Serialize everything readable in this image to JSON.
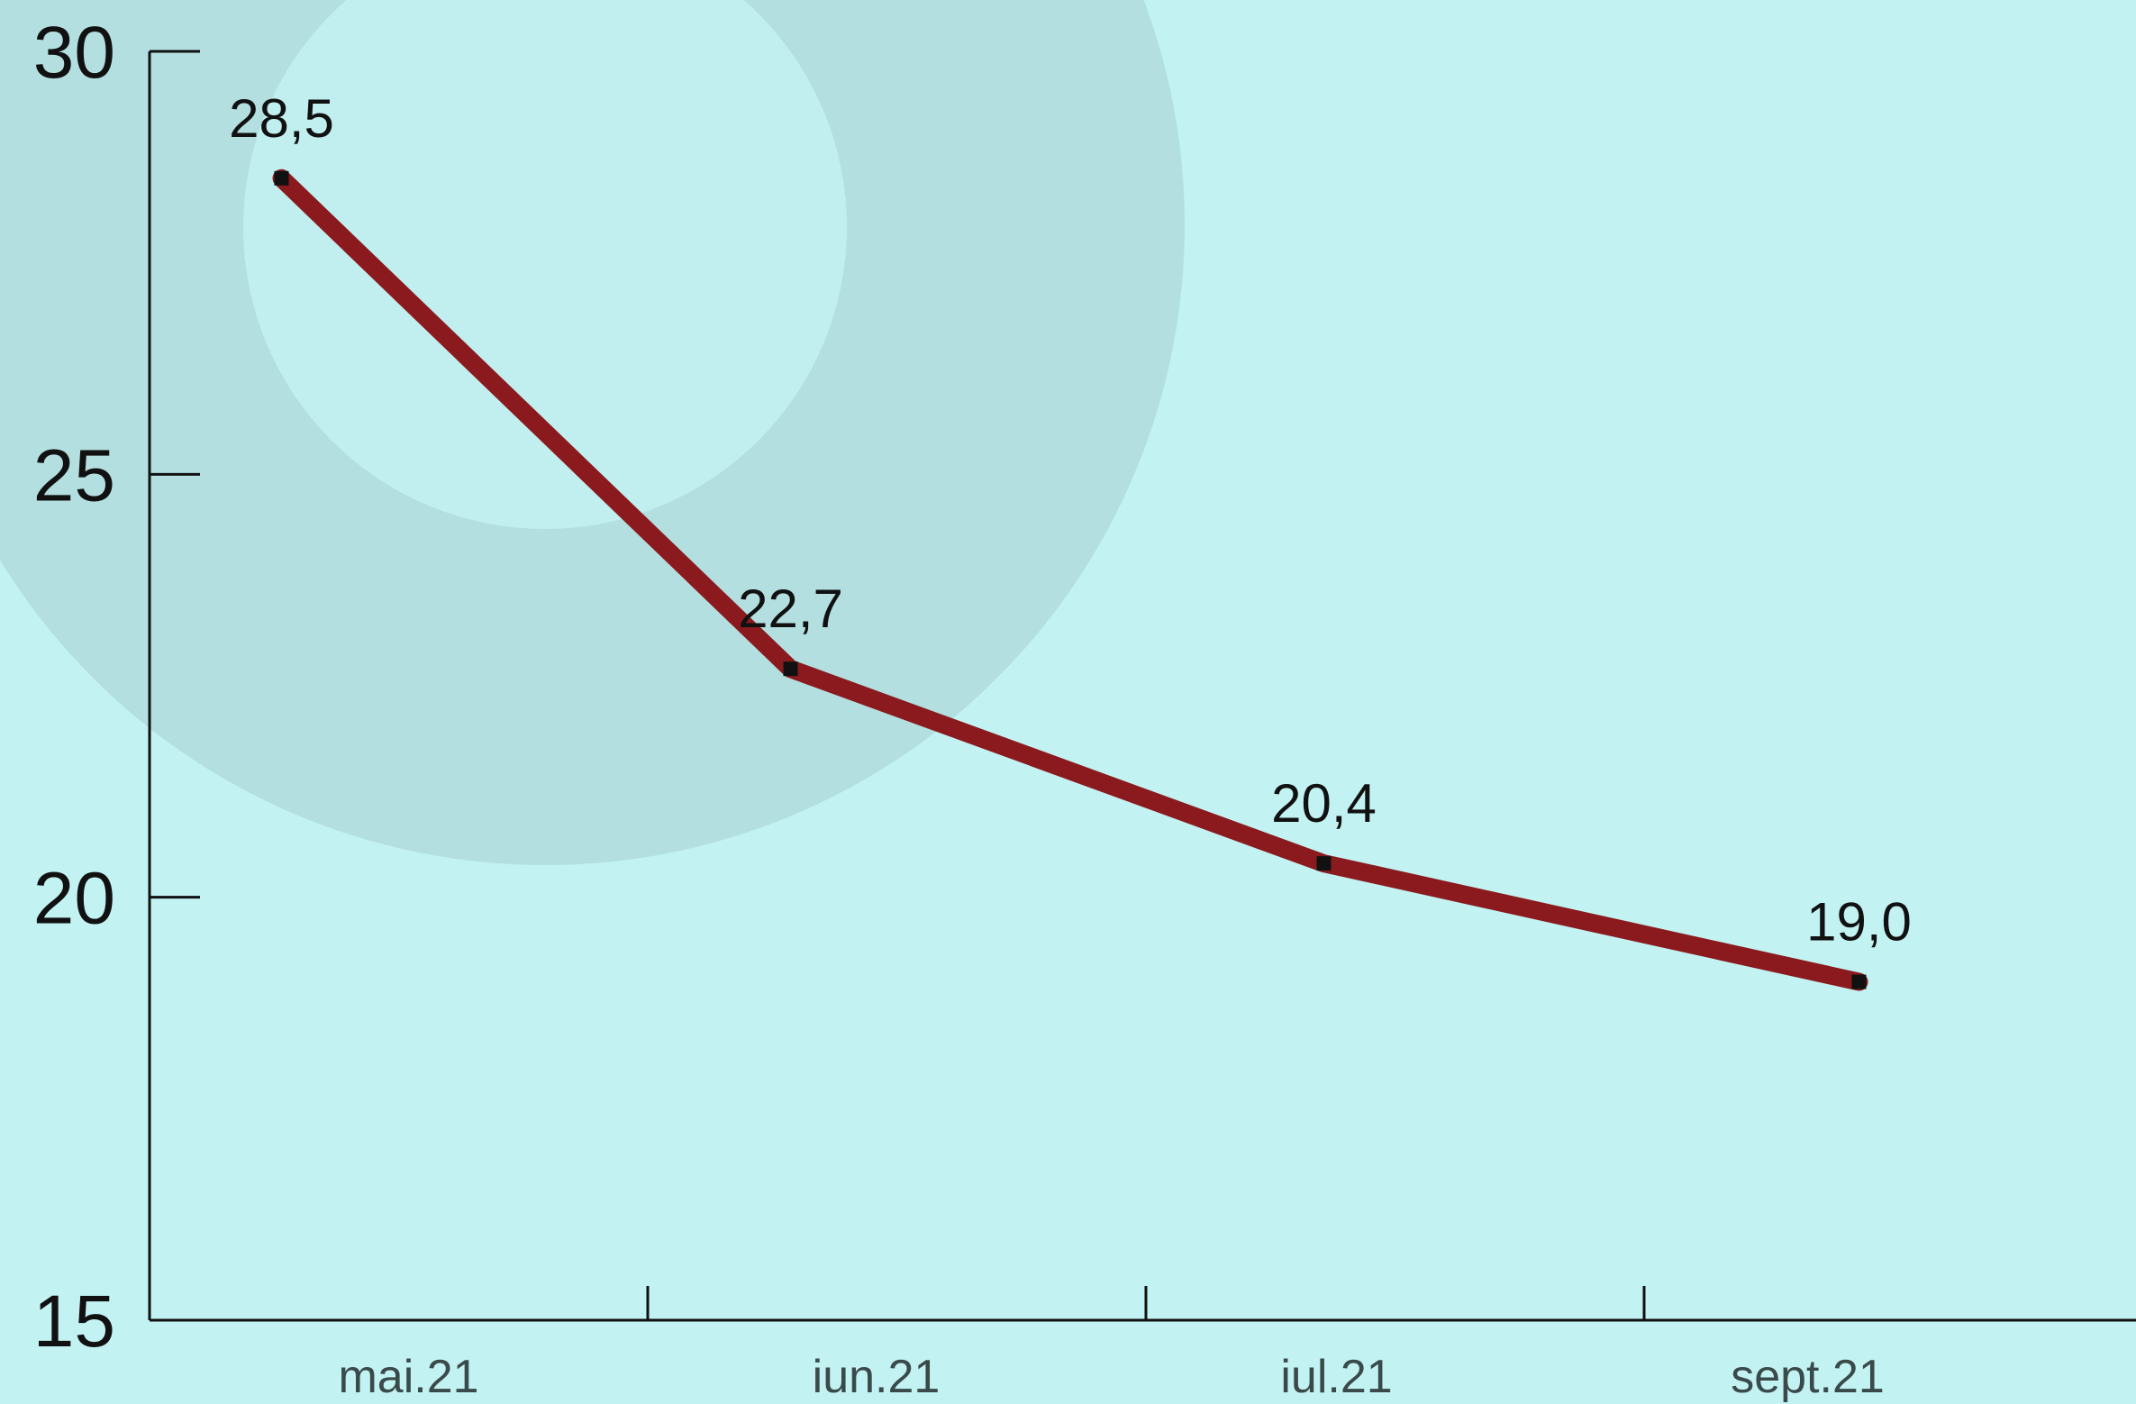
{
  "chart_data": {
    "type": "line",
    "categories": [
      "mai.21",
      "iun.21",
      "iul.21",
      "sept.21"
    ],
    "values": [
      28.5,
      22.7,
      20.4,
      19.0
    ],
    "data_labels": [
      "28,5",
      "22,7",
      "20,4",
      "19,0"
    ],
    "y_ticks": [
      "15",
      "20",
      "25",
      "30"
    ],
    "ylim": [
      15,
      30
    ],
    "grid": false,
    "legend": "none",
    "title": "",
    "xlabel": "",
    "ylabel": ""
  },
  "colors": {
    "background": "#c3f2f2",
    "decor_circle": "#b3dfe0",
    "line": "#8b1a1e",
    "marker": "#111111",
    "axis": "#111111"
  }
}
